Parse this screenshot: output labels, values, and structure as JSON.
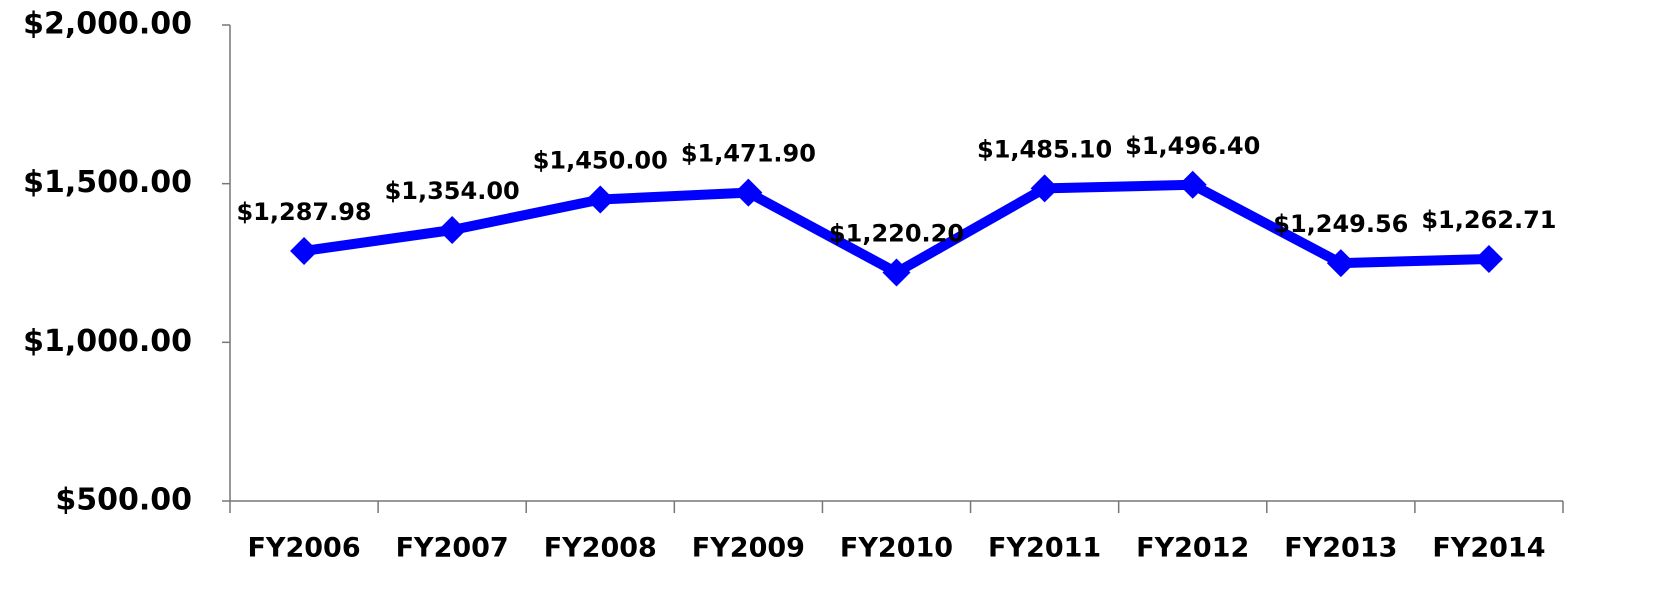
{
  "chart_data": {
    "type": "line",
    "categories": [
      "FY2006",
      "FY2007",
      "FY2008",
      "FY2009",
      "FY2010",
      "FY2011",
      "FY2012",
      "FY2013",
      "FY2014"
    ],
    "series": [
      {
        "name": null,
        "color": "#0000ff",
        "values": [
          1287.98,
          1354.0,
          1450.0,
          1471.9,
          1220.2,
          1485.1,
          1496.4,
          1249.56,
          1262.71
        ],
        "value_labels": [
          "$1,287.98",
          "$1,354.00",
          "$1,450.00",
          "$1,471.90",
          "$1,220.20",
          "$1,485.10",
          "$1,496.40",
          "$1,249.56",
          "$1,262.71"
        ]
      }
    ],
    "ylim": [
      500,
      2000
    ],
    "yticks": [
      {
        "value": 500,
        "label": "$500.00"
      },
      {
        "value": 1000,
        "label": "$1,000.00"
      },
      {
        "value": 1500,
        "label": "$1,500.00"
      },
      {
        "value": 2000,
        "label": "$2,000.00"
      }
    ],
    "grid": false
  }
}
